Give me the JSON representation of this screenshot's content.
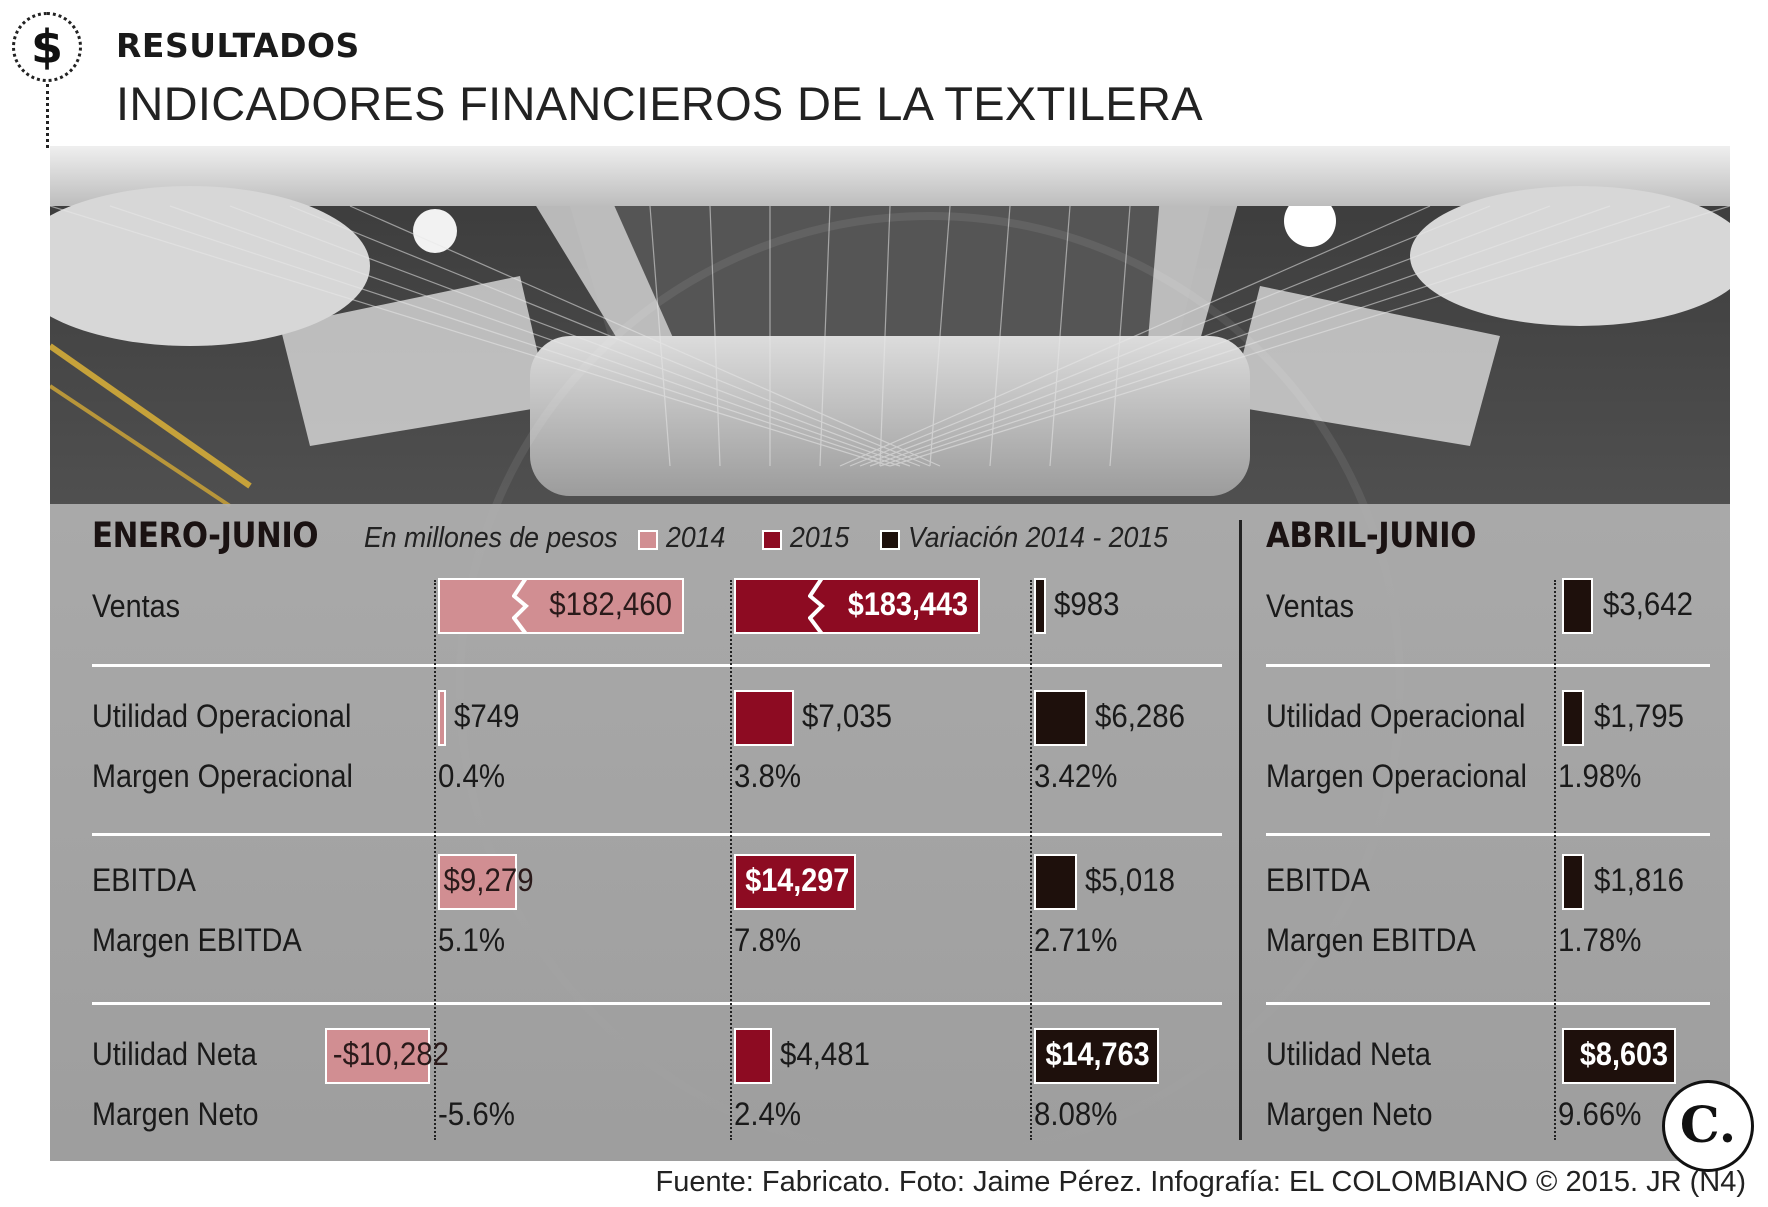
{
  "header": {
    "kicker": "RESULTADOS",
    "title": "INDICADORES FINANCIEROS DE LA TEXTILERA",
    "badge_symbol": "$",
    "badge_icon": "dollar-icon"
  },
  "colors": {
    "year_2014": "#d18e92",
    "year_2015": "#8d0b22",
    "variation": "#1e100c"
  },
  "legend": {
    "units": "En millones de pesos",
    "items": [
      {
        "label": "2014",
        "color": "#d18e92"
      },
      {
        "label": "2015",
        "color": "#8d0b22"
      },
      {
        "label": "Variación 2014 - 2015",
        "color": "#1e100c"
      }
    ]
  },
  "chart_data": [
    {
      "type": "bar",
      "title": "ENERO-JUNIO",
      "subtitle": "En millones de pesos",
      "series": [
        {
          "name": "2014",
          "values": [
            182460,
            749,
            9279,
            -10282
          ],
          "labels": [
            "$182,460",
            "$749",
            "$9,279",
            "-$10,282"
          ]
        },
        {
          "name": "2015",
          "values": [
            183443,
            7035,
            14297,
            4481
          ],
          "labels": [
            "$183,443",
            "$7,035",
            "$14,297",
            "$4,481"
          ]
        },
        {
          "name": "Variación 2014 - 2015",
          "values": [
            983,
            6286,
            5018,
            14763
          ],
          "labels": [
            "$983",
            "$6,286",
            "$5,018",
            "$14,763"
          ]
        }
      ],
      "categories": [
        "Ventas",
        "Utilidad Operacional",
        "EBITDA",
        "Utilidad Neta"
      ],
      "margins": {
        "labels": [
          "Margen Operacional",
          "Margen EBITDA",
          "Margen Neto"
        ],
        "2014": [
          "0.4%",
          "5.1%",
          "-5.6%"
        ],
        "2015": [
          "3.8%",
          "7.8%",
          "2.4%"
        ],
        "variation": [
          "3.42%",
          "2.71%",
          "8.08%"
        ]
      },
      "broken_axis": [
        "Ventas"
      ]
    },
    {
      "type": "bar",
      "title": "ABRIL-JUNIO",
      "series": [
        {
          "name": "Variación 2014 - 2015",
          "values": [
            3642,
            1795,
            1816,
            8603
          ],
          "labels": [
            "$3,642",
            "$1,795",
            "$1,816",
            "$8,603"
          ]
        }
      ],
      "categories": [
        "Ventas",
        "Utilidad Operacional",
        "EBITDA",
        "Utilidad Neta"
      ],
      "margins": {
        "labels": [
          "Margen Operacional",
          "Margen EBITDA",
          "Margen Neto"
        ],
        "variation": [
          "1.98%",
          "1.78%",
          "9.66%"
        ]
      }
    }
  ],
  "footer": "Fuente: Fabricato. Foto: Jaime Pérez. Infografía: EL COLOMBIANO © 2015. JR (N4)",
  "logo": {
    "letter": "C.",
    "icon": "el-colombiano-logo-icon"
  }
}
